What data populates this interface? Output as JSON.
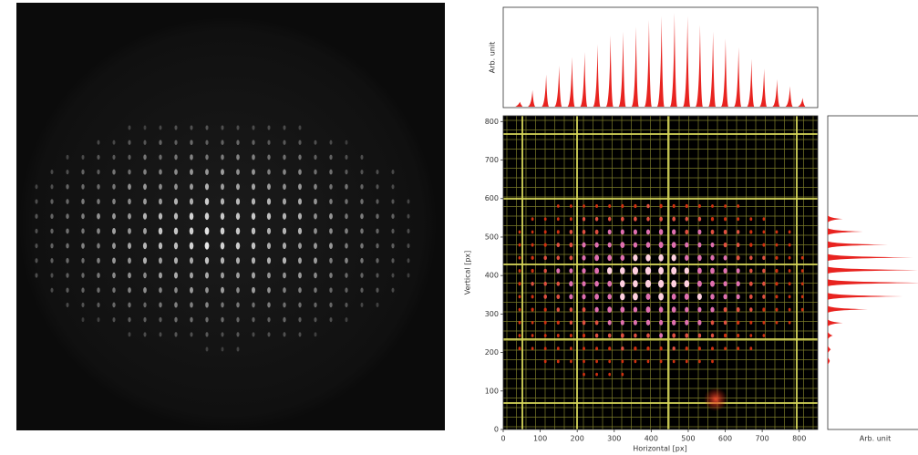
{
  "chart_data": [
    {
      "type": "area",
      "orientation": "vertical",
      "ylabel": "Arb. unit",
      "color": "#e8231f",
      "x": [
        45,
        79,
        116,
        151,
        186,
        220,
        255,
        290,
        324,
        359,
        394,
        428,
        463,
        498,
        532,
        567,
        601,
        636,
        671,
        705,
        740,
        775,
        809
      ],
      "values": [
        0.05,
        0.17,
        0.33,
        0.42,
        0.51,
        0.56,
        0.64,
        0.73,
        0.77,
        0.82,
        0.89,
        0.93,
        0.96,
        0.93,
        0.84,
        0.77,
        0.7,
        0.61,
        0.49,
        0.39,
        0.28,
        0.21,
        0.09
      ],
      "xlim": [
        0,
        850
      ],
      "ylim": [
        0,
        1
      ]
    },
    {
      "type": "image",
      "xlabel": "Horizontal [px]",
      "ylabel": "Vertical [px]",
      "xlim": [
        0,
        850
      ],
      "ylim": [
        0,
        815
      ],
      "xticks": [
        0,
        100,
        200,
        300,
        400,
        500,
        600,
        700,
        800
      ],
      "yticks": [
        0,
        100,
        200,
        300,
        400,
        500,
        600,
        700,
        800
      ]
    },
    {
      "type": "area",
      "orientation": "horizontal",
      "xlabel": "Arb. unit",
      "color": "#e8231f",
      "y": [
        547,
        514,
        480,
        447,
        414,
        381,
        346,
        312,
        277,
        244,
        208,
        178
      ],
      "values": [
        0.15,
        0.35,
        0.6,
        0.85,
        0.95,
        1.0,
        0.75,
        0.4,
        0.15,
        0.05,
        0.03,
        0.02
      ],
      "ylim": [
        0,
        815
      ],
      "xlim": [
        0,
        1
      ]
    }
  ]
}
